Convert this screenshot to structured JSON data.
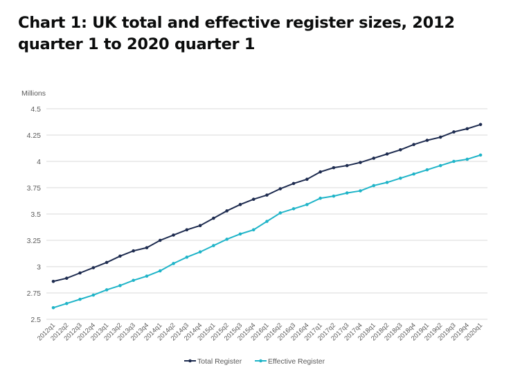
{
  "title": "Chart 1: UK total and effective register sizes, 2012 quarter 1 to 2020 quarter 1",
  "chart_data": {
    "type": "line",
    "title": "Chart 1: UK total and effective register sizes, 2012 quarter 1 to 2020 quarter 1",
    "ylabel": "Millions",
    "xlabel": "",
    "ylim": [
      2.5,
      4.5
    ],
    "yticks": [
      "2.5",
      "2.75",
      "3",
      "3.25",
      "3.5",
      "3.75",
      "4",
      "4.25",
      "4.5"
    ],
    "grid": true,
    "legend_position": "bottom",
    "categories": [
      "2012q1",
      "2012q2",
      "2012q3",
      "2012q4",
      "2013q1",
      "2013q2",
      "2013q3",
      "2013q4",
      "2014q1",
      "2014q2",
      "2014q3",
      "2014q4",
      "2015q1",
      "2015q2",
      "2015q3",
      "2015q4",
      "2016q1",
      "2016q2",
      "2016q3",
      "2016q4",
      "2017q1",
      "2017q2",
      "2017q3",
      "2017q4",
      "2018q1",
      "2018q2",
      "2018q3",
      "2018q4",
      "2019q1",
      "2019q2",
      "2019q3",
      "2019q4",
      "2020q1"
    ],
    "series": [
      {
        "name": "Total Register",
        "color": "#1d2b4f",
        "values": [
          2.86,
          2.89,
          2.94,
          2.99,
          3.04,
          3.1,
          3.15,
          3.18,
          3.25,
          3.3,
          3.35,
          3.39,
          3.46,
          3.53,
          3.59,
          3.64,
          3.68,
          3.74,
          3.79,
          3.83,
          3.9,
          3.94,
          3.96,
          3.99,
          4.03,
          4.07,
          4.11,
          4.16,
          4.2,
          4.23,
          4.28,
          4.31,
          4.35
        ]
      },
      {
        "name": "Effective Register",
        "color": "#1fb4c8",
        "values": [
          2.61,
          2.65,
          2.69,
          2.73,
          2.78,
          2.82,
          2.87,
          2.91,
          2.96,
          3.03,
          3.09,
          3.14,
          3.2,
          3.26,
          3.31,
          3.35,
          3.43,
          3.51,
          3.55,
          3.59,
          3.65,
          3.67,
          3.7,
          3.72,
          3.77,
          3.8,
          3.84,
          3.88,
          3.92,
          3.96,
          4.0,
          4.02,
          4.06
        ]
      }
    ]
  }
}
